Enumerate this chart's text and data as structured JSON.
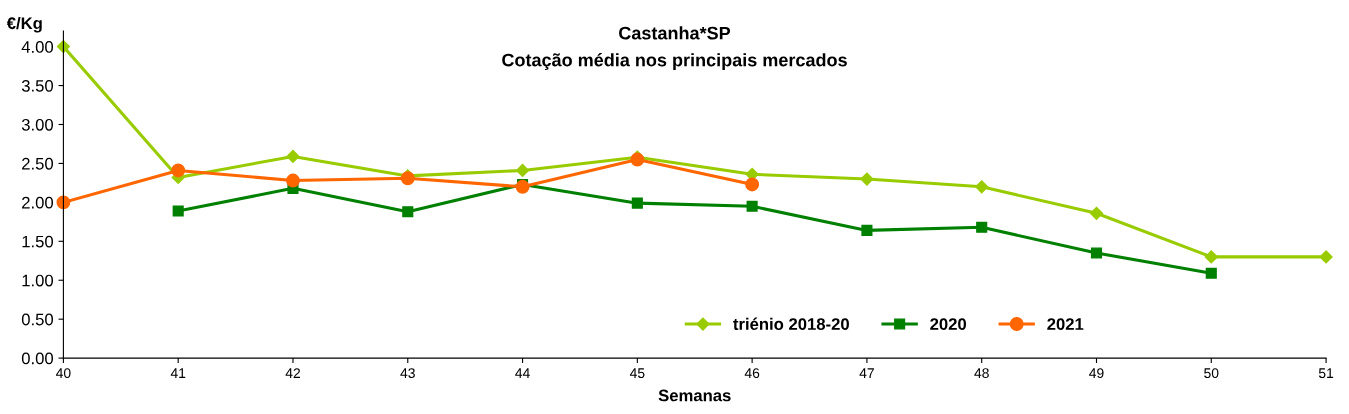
{
  "chart_data": {
    "type": "line",
    "title": "Castanha*SP",
    "subtitle": "Cotação média nos principais mercados",
    "xlabel": "Semanas",
    "ylabel": "€/Kg",
    "x": [
      40,
      41,
      42,
      43,
      44,
      45,
      46,
      47,
      48,
      49,
      50,
      51
    ],
    "series": [
      {
        "name": "triénio 2018-20",
        "color": "#99cc00",
        "marker": "diamond",
        "values": [
          4.0,
          2.32,
          2.59,
          2.34,
          2.41,
          2.58,
          2.36,
          2.3,
          2.2,
          1.86,
          1.3,
          1.3
        ]
      },
      {
        "name": "2020",
        "color": "#008000",
        "marker": "square",
        "values": [
          null,
          1.89,
          2.18,
          1.88,
          2.23,
          1.99,
          1.95,
          1.64,
          1.68,
          1.35,
          1.09,
          null
        ]
      },
      {
        "name": "2021",
        "color": "#ff6600",
        "marker": "circle",
        "values": [
          2.0,
          2.41,
          2.28,
          2.31,
          2.2,
          2.55,
          2.23,
          null,
          null,
          null,
          null,
          null
        ]
      }
    ],
    "xlim": [
      40,
      51
    ],
    "xticks": [
      40,
      41,
      42,
      43,
      44,
      45,
      46,
      47,
      48,
      49,
      50,
      51
    ],
    "ylim": [
      0,
      4.2
    ],
    "yticks": [
      {
        "value": 0,
        "label": "0.00"
      },
      {
        "value": 0.5,
        "label": "0.50"
      },
      {
        "value": 1,
        "label": "1.00"
      },
      {
        "value": 1.5,
        "label": "1.50"
      },
      {
        "value": 2,
        "label": "2.00"
      },
      {
        "value": 2.5,
        "label": "2.50"
      },
      {
        "value": 3,
        "label": "3.00"
      },
      {
        "value": 3.5,
        "label": "3.50"
      },
      {
        "value": 4,
        "label": "4.00"
      }
    ],
    "grid": false,
    "legend": "bottom right",
    "line_style": "solid"
  }
}
